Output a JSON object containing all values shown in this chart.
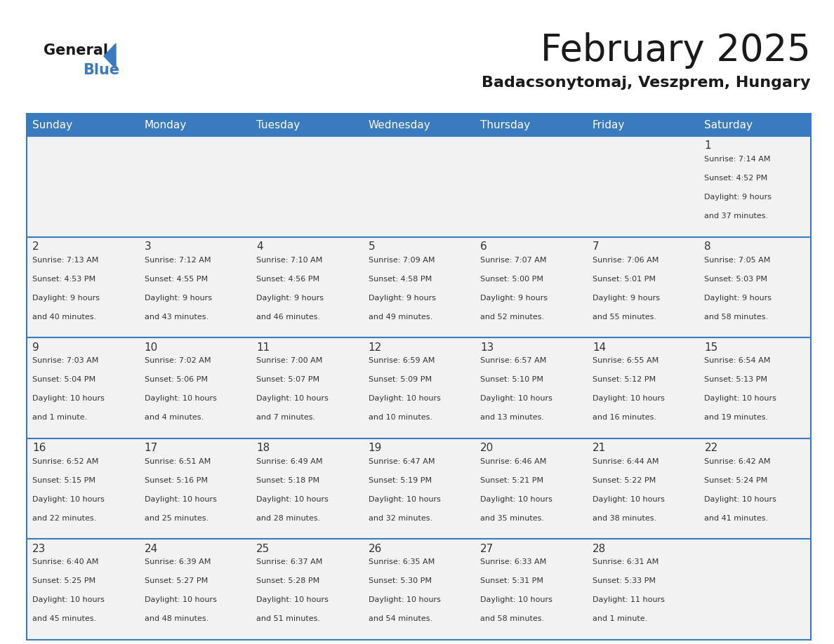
{
  "title": "February 2025",
  "subtitle": "Badacsonytomaj, Veszprem, Hungary",
  "header_bg": "#3a7abf",
  "header_fg": "#ffffff",
  "cell_bg": "#f2f2f2",
  "border_color": "#3a7abf",
  "text_color": "#333333",
  "title_color": "#1a1a1a",
  "subtitle_color": "#1a1a1a",
  "day_names": [
    "Sunday",
    "Monday",
    "Tuesday",
    "Wednesday",
    "Thursday",
    "Friday",
    "Saturday"
  ],
  "weeks": [
    [
      {
        "day": null,
        "lines": []
      },
      {
        "day": null,
        "lines": []
      },
      {
        "day": null,
        "lines": []
      },
      {
        "day": null,
        "lines": []
      },
      {
        "day": null,
        "lines": []
      },
      {
        "day": null,
        "lines": []
      },
      {
        "day": 1,
        "lines": [
          "Sunrise: 7:14 AM",
          "Sunset: 4:52 PM",
          "Daylight: 9 hours",
          "and 37 minutes."
        ]
      }
    ],
    [
      {
        "day": 2,
        "lines": [
          "Sunrise: 7:13 AM",
          "Sunset: 4:53 PM",
          "Daylight: 9 hours",
          "and 40 minutes."
        ]
      },
      {
        "day": 3,
        "lines": [
          "Sunrise: 7:12 AM",
          "Sunset: 4:55 PM",
          "Daylight: 9 hours",
          "and 43 minutes."
        ]
      },
      {
        "day": 4,
        "lines": [
          "Sunrise: 7:10 AM",
          "Sunset: 4:56 PM",
          "Daylight: 9 hours",
          "and 46 minutes."
        ]
      },
      {
        "day": 5,
        "lines": [
          "Sunrise: 7:09 AM",
          "Sunset: 4:58 PM",
          "Daylight: 9 hours",
          "and 49 minutes."
        ]
      },
      {
        "day": 6,
        "lines": [
          "Sunrise: 7:07 AM",
          "Sunset: 5:00 PM",
          "Daylight: 9 hours",
          "and 52 minutes."
        ]
      },
      {
        "day": 7,
        "lines": [
          "Sunrise: 7:06 AM",
          "Sunset: 5:01 PM",
          "Daylight: 9 hours",
          "and 55 minutes."
        ]
      },
      {
        "day": 8,
        "lines": [
          "Sunrise: 7:05 AM",
          "Sunset: 5:03 PM",
          "Daylight: 9 hours",
          "and 58 minutes."
        ]
      }
    ],
    [
      {
        "day": 9,
        "lines": [
          "Sunrise: 7:03 AM",
          "Sunset: 5:04 PM",
          "Daylight: 10 hours",
          "and 1 minute."
        ]
      },
      {
        "day": 10,
        "lines": [
          "Sunrise: 7:02 AM",
          "Sunset: 5:06 PM",
          "Daylight: 10 hours",
          "and 4 minutes."
        ]
      },
      {
        "day": 11,
        "lines": [
          "Sunrise: 7:00 AM",
          "Sunset: 5:07 PM",
          "Daylight: 10 hours",
          "and 7 minutes."
        ]
      },
      {
        "day": 12,
        "lines": [
          "Sunrise: 6:59 AM",
          "Sunset: 5:09 PM",
          "Daylight: 10 hours",
          "and 10 minutes."
        ]
      },
      {
        "day": 13,
        "lines": [
          "Sunrise: 6:57 AM",
          "Sunset: 5:10 PM",
          "Daylight: 10 hours",
          "and 13 minutes."
        ]
      },
      {
        "day": 14,
        "lines": [
          "Sunrise: 6:55 AM",
          "Sunset: 5:12 PM",
          "Daylight: 10 hours",
          "and 16 minutes."
        ]
      },
      {
        "day": 15,
        "lines": [
          "Sunrise: 6:54 AM",
          "Sunset: 5:13 PM",
          "Daylight: 10 hours",
          "and 19 minutes."
        ]
      }
    ],
    [
      {
        "day": 16,
        "lines": [
          "Sunrise: 6:52 AM",
          "Sunset: 5:15 PM",
          "Daylight: 10 hours",
          "and 22 minutes."
        ]
      },
      {
        "day": 17,
        "lines": [
          "Sunrise: 6:51 AM",
          "Sunset: 5:16 PM",
          "Daylight: 10 hours",
          "and 25 minutes."
        ]
      },
      {
        "day": 18,
        "lines": [
          "Sunrise: 6:49 AM",
          "Sunset: 5:18 PM",
          "Daylight: 10 hours",
          "and 28 minutes."
        ]
      },
      {
        "day": 19,
        "lines": [
          "Sunrise: 6:47 AM",
          "Sunset: 5:19 PM",
          "Daylight: 10 hours",
          "and 32 minutes."
        ]
      },
      {
        "day": 20,
        "lines": [
          "Sunrise: 6:46 AM",
          "Sunset: 5:21 PM",
          "Daylight: 10 hours",
          "and 35 minutes."
        ]
      },
      {
        "day": 21,
        "lines": [
          "Sunrise: 6:44 AM",
          "Sunset: 5:22 PM",
          "Daylight: 10 hours",
          "and 38 minutes."
        ]
      },
      {
        "day": 22,
        "lines": [
          "Sunrise: 6:42 AM",
          "Sunset: 5:24 PM",
          "Daylight: 10 hours",
          "and 41 minutes."
        ]
      }
    ],
    [
      {
        "day": 23,
        "lines": [
          "Sunrise: 6:40 AM",
          "Sunset: 5:25 PM",
          "Daylight: 10 hours",
          "and 45 minutes."
        ]
      },
      {
        "day": 24,
        "lines": [
          "Sunrise: 6:39 AM",
          "Sunset: 5:27 PM",
          "Daylight: 10 hours",
          "and 48 minutes."
        ]
      },
      {
        "day": 25,
        "lines": [
          "Sunrise: 6:37 AM",
          "Sunset: 5:28 PM",
          "Daylight: 10 hours",
          "and 51 minutes."
        ]
      },
      {
        "day": 26,
        "lines": [
          "Sunrise: 6:35 AM",
          "Sunset: 5:30 PM",
          "Daylight: 10 hours",
          "and 54 minutes."
        ]
      },
      {
        "day": 27,
        "lines": [
          "Sunrise: 6:33 AM",
          "Sunset: 5:31 PM",
          "Daylight: 10 hours",
          "and 58 minutes."
        ]
      },
      {
        "day": 28,
        "lines": [
          "Sunrise: 6:31 AM",
          "Sunset: 5:33 PM",
          "Daylight: 11 hours",
          "and 1 minute."
        ]
      },
      {
        "day": null,
        "lines": []
      }
    ]
  ]
}
